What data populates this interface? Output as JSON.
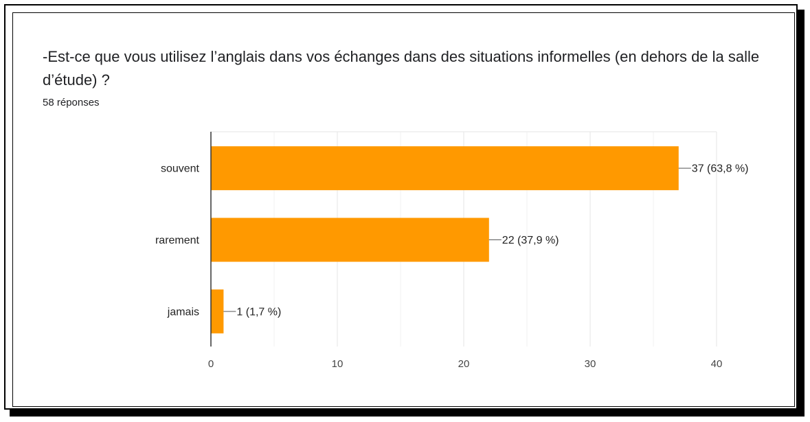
{
  "question": "-Est-ce que vous utilisez l’anglais dans vos échanges dans des situations informelles (en dehors de la salle d’étude) ?",
  "responses_count": "58 réponses",
  "colors": {
    "bar": "#ff9900",
    "grid": "#e6e6e6",
    "axis": "#333333",
    "text": "#222222"
  },
  "chart_data": {
    "type": "bar",
    "orientation": "horizontal",
    "categories": [
      "souvent",
      "rarement",
      "jamais"
    ],
    "values": [
      37,
      22,
      1
    ],
    "data_labels": [
      "37 (63,8 %)",
      "22 (37,9 %)",
      "1 (1,7 %)"
    ],
    "xlim": [
      0,
      40
    ],
    "xticks": [
      0,
      10,
      20,
      30,
      40
    ],
    "grid": true,
    "legend": "none"
  }
}
